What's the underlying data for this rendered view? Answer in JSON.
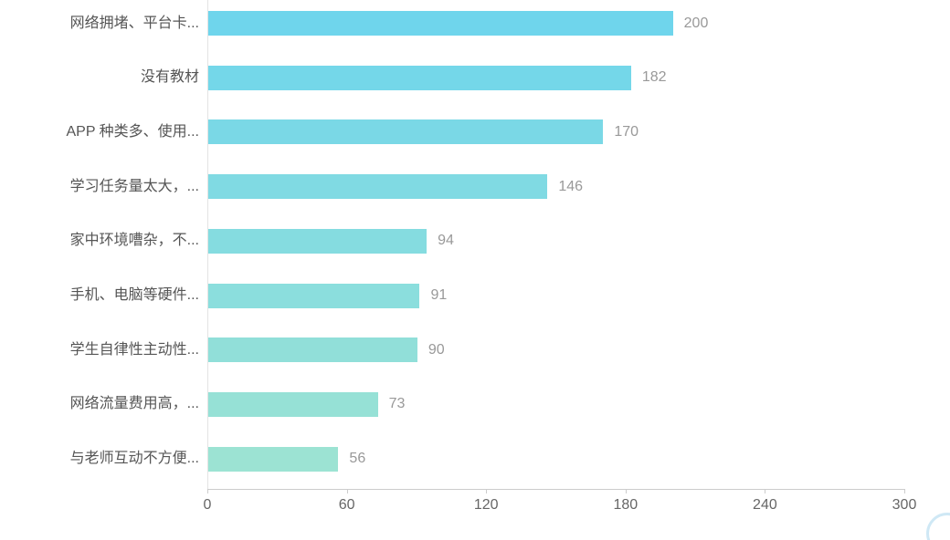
{
  "chart_data": {
    "type": "bar",
    "orientation": "horizontal",
    "title": "",
    "xlabel": "",
    "ylabel": "",
    "categories": [
      "网络拥堵、平台卡...",
      "没有教材",
      "APP 种类多、使用...",
      "学习任务量太大，...",
      "家中环境嘈杂，不...",
      "手机、电脑等硬件...",
      "学生自律性主动性...",
      "网络流量费用高，...",
      "与老师互动不方便..."
    ],
    "values": [
      200,
      182,
      170,
      146,
      94,
      91,
      90,
      73,
      56
    ],
    "value_labels": [
      "200",
      "182",
      "170",
      "146",
      "94",
      "91",
      "90",
      "73",
      "56"
    ],
    "bar_colors": [
      "#6fd5ec",
      "#74d7e9",
      "#7ad8e6",
      "#80dae3",
      "#85dce0",
      "#8bdedd",
      "#91dfd9",
      "#96e1d6",
      "#9ce3d3"
    ],
    "x_ticks": [
      "0",
      "60",
      "120",
      "180",
      "240",
      "300"
    ],
    "x_tick_values": [
      0,
      60,
      120,
      180,
      240,
      300
    ],
    "xlim": [
      0,
      300
    ],
    "grid": false,
    "legend": null,
    "colors": {
      "value_label": "#999999",
      "category_label": "#555555",
      "tick_label": "#666666",
      "axis_line": "#cccccc",
      "y_axis_line": "#e3e3e3"
    }
  }
}
